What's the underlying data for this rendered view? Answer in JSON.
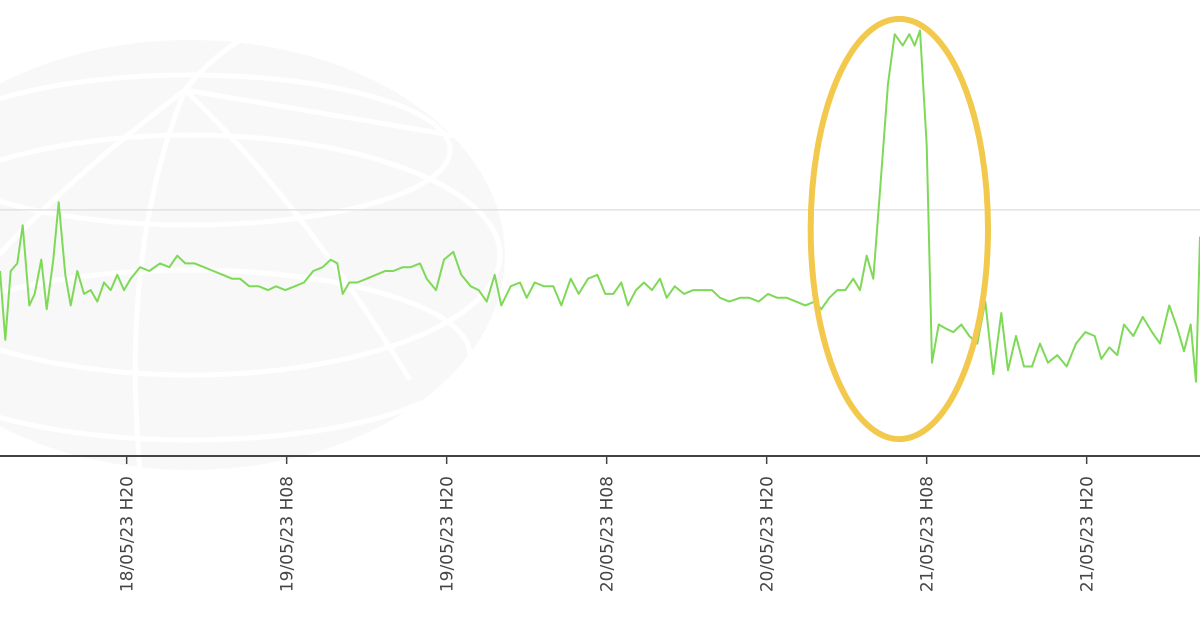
{
  "chart_data": {
    "type": "line",
    "title": "",
    "xlabel": "",
    "ylabel": "",
    "grid": true,
    "x_tick_labels": [
      "18/05/23 H20",
      "19/05/23 H08",
      "19/05/23 H20",
      "20/05/23 H08",
      "20/05/23 H20",
      "21/05/23 H08",
      "21/05/23 H20"
    ],
    "x_tick_hours": [
      20,
      32,
      44,
      56,
      68,
      80,
      92
    ],
    "x_range_hours": [
      10.5,
      100.5
    ],
    "x_origin": "18/05/23 H00",
    "y_range": [
      0,
      100
    ],
    "reference_line": 55,
    "highlight": {
      "shape": "ellipse",
      "color": "#f2c94c",
      "x_hours": [
        71.3,
        84.6
      ],
      "y": [
        -5,
        105
      ]
    },
    "series": [
      {
        "name": "",
        "color": "#7ed957",
        "points": [
          [
            10.5,
            39
          ],
          [
            10.9,
            21
          ],
          [
            11.3,
            39
          ],
          [
            11.8,
            41
          ],
          [
            12.2,
            51
          ],
          [
            12.7,
            30
          ],
          [
            13.1,
            33
          ],
          [
            13.6,
            42
          ],
          [
            14.0,
            29
          ],
          [
            14.5,
            42
          ],
          [
            14.9,
            57
          ],
          [
            15.4,
            38
          ],
          [
            15.8,
            30
          ],
          [
            16.3,
            39
          ],
          [
            16.8,
            33
          ],
          [
            17.3,
            34
          ],
          [
            17.8,
            31
          ],
          [
            18.3,
            36
          ],
          [
            18.8,
            34
          ],
          [
            19.3,
            38
          ],
          [
            19.8,
            34
          ],
          [
            20.3,
            37
          ],
          [
            21.0,
            40
          ],
          [
            21.7,
            39
          ],
          [
            22.5,
            41
          ],
          [
            23.2,
            40
          ],
          [
            23.8,
            43
          ],
          [
            24.4,
            41
          ],
          [
            25.1,
            41
          ],
          [
            25.8,
            40
          ],
          [
            26.5,
            39
          ],
          [
            27.2,
            38
          ],
          [
            27.9,
            37
          ],
          [
            28.5,
            37
          ],
          [
            29.2,
            35
          ],
          [
            29.9,
            35
          ],
          [
            30.6,
            34
          ],
          [
            31.2,
            35
          ],
          [
            31.9,
            34
          ],
          [
            32.6,
            35
          ],
          [
            33.3,
            36
          ],
          [
            34.0,
            39
          ],
          [
            34.7,
            40
          ],
          [
            35.3,
            42
          ],
          [
            35.8,
            41
          ],
          [
            36.2,
            33
          ],
          [
            36.7,
            36
          ],
          [
            37.3,
            36
          ],
          [
            38.0,
            37
          ],
          [
            38.7,
            38
          ],
          [
            39.4,
            39
          ],
          [
            40.0,
            39
          ],
          [
            40.7,
            40
          ],
          [
            41.3,
            40
          ],
          [
            42.0,
            41
          ],
          [
            42.5,
            37
          ],
          [
            43.2,
            34
          ],
          [
            43.8,
            42
          ],
          [
            44.5,
            44
          ],
          [
            45.1,
            38
          ],
          [
            45.8,
            35
          ],
          [
            46.4,
            34
          ],
          [
            47.0,
            31
          ],
          [
            47.6,
            38
          ],
          [
            48.1,
            30
          ],
          [
            48.8,
            35
          ],
          [
            49.5,
            36
          ],
          [
            50.0,
            32
          ],
          [
            50.6,
            36
          ],
          [
            51.3,
            35
          ],
          [
            52.0,
            35
          ],
          [
            52.6,
            30
          ],
          [
            53.3,
            37
          ],
          [
            53.9,
            33
          ],
          [
            54.6,
            37
          ],
          [
            55.3,
            38
          ],
          [
            55.9,
            33
          ],
          [
            56.5,
            33
          ],
          [
            57.1,
            36
          ],
          [
            57.6,
            30
          ],
          [
            58.2,
            34
          ],
          [
            58.8,
            36
          ],
          [
            59.4,
            34
          ],
          [
            60.0,
            37
          ],
          [
            60.5,
            32
          ],
          [
            61.1,
            35
          ],
          [
            61.8,
            33
          ],
          [
            62.5,
            34
          ],
          [
            63.2,
            34
          ],
          [
            63.9,
            34
          ],
          [
            64.5,
            32
          ],
          [
            65.2,
            31
          ],
          [
            66.0,
            32
          ],
          [
            66.7,
            32
          ],
          [
            67.4,
            31
          ],
          [
            68.1,
            33
          ],
          [
            68.8,
            32
          ],
          [
            69.5,
            32
          ],
          [
            70.2,
            31
          ],
          [
            70.9,
            30
          ],
          [
            71.6,
            31
          ],
          [
            72.1,
            29
          ],
          [
            72.7,
            32
          ],
          [
            73.3,
            34
          ],
          [
            73.9,
            34
          ],
          [
            74.5,
            37
          ],
          [
            75.0,
            34
          ],
          [
            75.5,
            43
          ],
          [
            76.0,
            37
          ],
          [
            76.5,
            60
          ],
          [
            77.1,
            88
          ],
          [
            77.6,
            101
          ],
          [
            78.2,
            98
          ],
          [
            78.7,
            101
          ],
          [
            79.1,
            98
          ],
          [
            79.5,
            102
          ],
          [
            80.0,
            72
          ],
          [
            80.4,
            15
          ],
          [
            80.9,
            25
          ],
          [
            81.4,
            24
          ],
          [
            82.0,
            23
          ],
          [
            82.6,
            25
          ],
          [
            83.2,
            22
          ],
          [
            83.8,
            20
          ],
          [
            84.4,
            31
          ],
          [
            85.0,
            12
          ],
          [
            85.6,
            28
          ],
          [
            86.1,
            13
          ],
          [
            86.7,
            22
          ],
          [
            87.3,
            14
          ],
          [
            87.9,
            14
          ],
          [
            88.5,
            20
          ],
          [
            89.1,
            15
          ],
          [
            89.8,
            17
          ],
          [
            90.5,
            14
          ],
          [
            91.2,
            20
          ],
          [
            91.9,
            23
          ],
          [
            92.6,
            22
          ],
          [
            93.1,
            16
          ],
          [
            93.7,
            19
          ],
          [
            94.3,
            17
          ],
          [
            94.8,
            25
          ],
          [
            95.5,
            22
          ],
          [
            96.2,
            27
          ],
          [
            96.9,
            23
          ],
          [
            97.5,
            20
          ],
          [
            98.2,
            30
          ],
          [
            98.8,
            24
          ],
          [
            99.3,
            18
          ],
          [
            99.8,
            25
          ],
          [
            100.2,
            10
          ],
          [
            100.5,
            48
          ]
        ]
      }
    ]
  }
}
